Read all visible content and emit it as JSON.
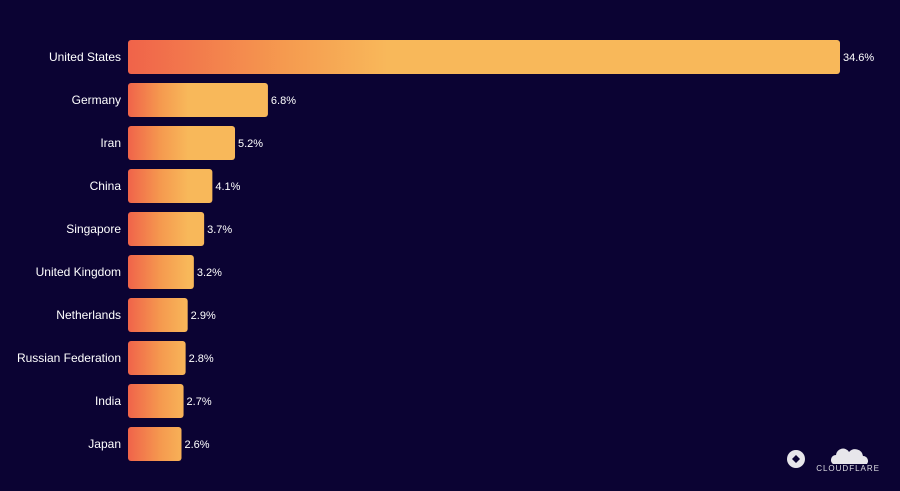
{
  "chart_data": {
    "type": "bar",
    "orientation": "horizontal",
    "categories": [
      "United States",
      "Germany",
      "Iran",
      "China",
      "Singapore",
      "United Kingdom",
      "Netherlands",
      "Russian Federation",
      "India",
      "Japan"
    ],
    "values": [
      34.6,
      6.8,
      5.2,
      4.1,
      3.7,
      3.2,
      2.9,
      2.8,
      2.7,
      2.6
    ],
    "value_labels": [
      "34.6%",
      "6.8%",
      "5.2%",
      "4.1%",
      "3.7%",
      "3.2%",
      "2.9%",
      "2.8%",
      "2.7%",
      "2.6%"
    ],
    "unit": "%",
    "xlim": [
      0,
      34.6
    ],
    "grid": false,
    "legend": "none",
    "colors": {
      "background": "#0b0333",
      "bar_start": "#f0634a",
      "bar_mid": "#f59a4f",
      "bar_end": "#f8b85a",
      "text": "#ffffff"
    }
  },
  "branding": {
    "logo_text": "CLOUDFLARE",
    "logo_icon": "cloud-logo-icon"
  }
}
